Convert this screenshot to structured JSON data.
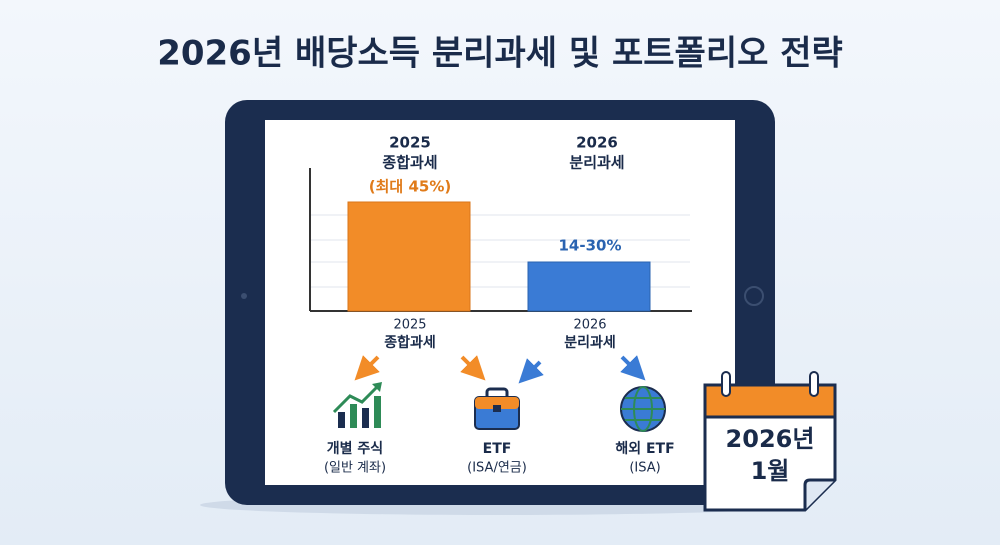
{
  "title": "2026년 배당소득 분리과세 및 포트폴리오 전략",
  "comparison": [
    {
      "year": "2025",
      "label": "종합과세",
      "rate": "(최대 45%)",
      "axis_year": "2025",
      "axis_label": "종합과세"
    },
    {
      "year": "2026",
      "label": "분리과세",
      "rate": "14-30%",
      "axis_year": "2026",
      "axis_label": "분리과세"
    }
  ],
  "portfolio": [
    {
      "name": "개별 주식",
      "note": "(일반 계좌)"
    },
    {
      "name": "ETF",
      "note": "(ISA/연금)"
    },
    {
      "name": "해외 ETF",
      "note": "(ISA)"
    }
  ],
  "calendar": [
    "2026년",
    "1월"
  ]
}
